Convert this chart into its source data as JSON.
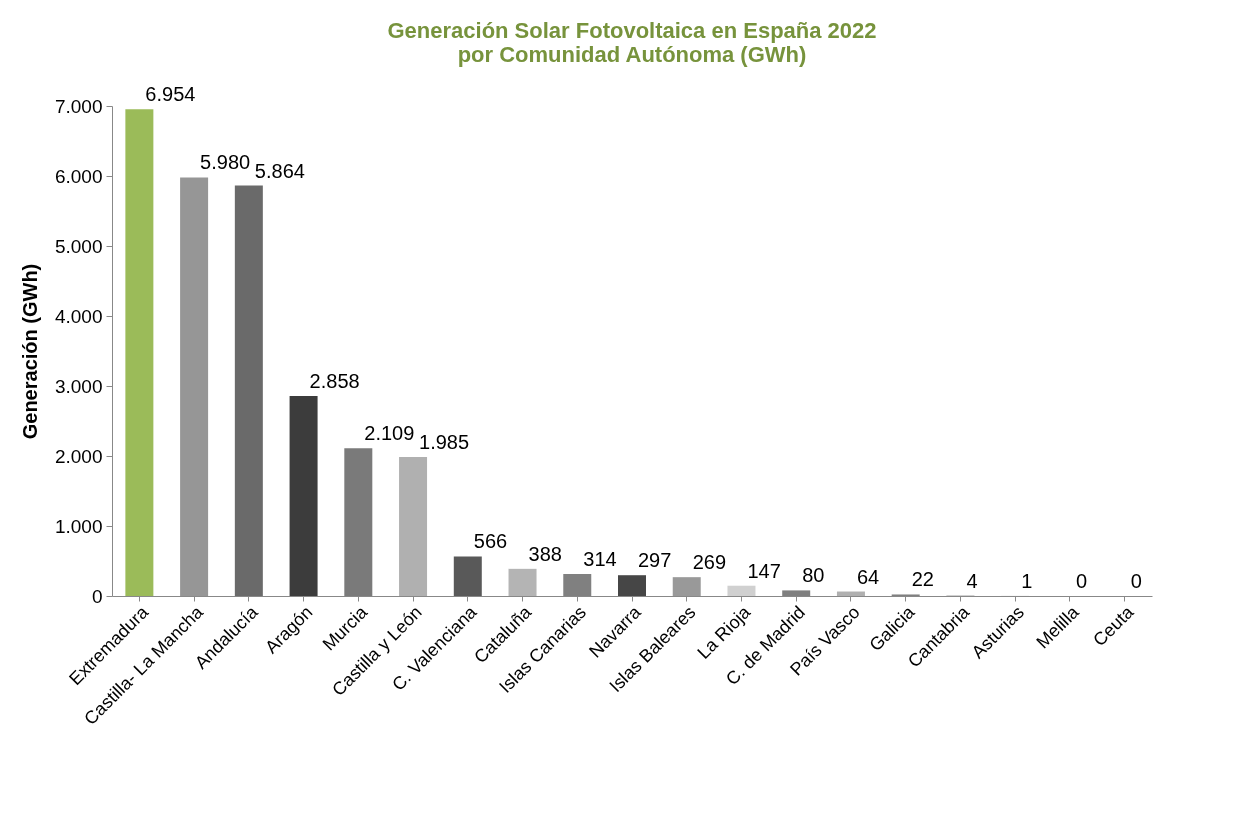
{
  "chart_data": {
    "type": "bar",
    "title": "Generación Solar Fotovoltaica en España 2022 por Comunidad Autónoma (GWh)",
    "ylabel": "Generación (GWh)",
    "categories": [
      "Extremadura",
      "Castilla- La Mancha",
      "Andalucía",
      "Aragón",
      "Murcia",
      "Castilla y León",
      "C. Valenciana",
      "Cataluña",
      "Islas Canarias",
      "Navarra",
      "Islas Baleares",
      "La Rioja",
      "C. de Madrid",
      "País Vasco",
      "Galicia",
      "Cantabria",
      "Asturias",
      "Melilla",
      "Ceuta"
    ],
    "values": [
      6954,
      5980,
      5864,
      2858,
      2109,
      1985,
      566,
      388,
      314,
      297,
      269,
      147,
      80,
      64,
      22,
      4,
      1,
      0,
      0
    ],
    "value_labels": [
      "6.954",
      "5.980",
      "5.864",
      "2.858",
      "2.109",
      "1.985",
      "566",
      "388",
      "314",
      "297",
      "269",
      "147",
      "80",
      "64",
      "22",
      "4",
      "1",
      "0",
      "0"
    ],
    "colors": [
      "#9bbb59",
      "#969696",
      "#6a6a6a",
      "#3c3c3c",
      "#7a7a7a",
      "#b0b0b0",
      "#595959",
      "#b4b4b4",
      "#808080",
      "#464646",
      "#999999",
      "#d0d0d0",
      "#7f7f7f",
      "#b0b0b0",
      "#808080",
      "#595959",
      "#9a9a9a",
      "#c0c0c0",
      "#808080"
    ],
    "ylim": [
      0,
      7000
    ],
    "yticks": [
      {
        "value": 0,
        "label": "0"
      },
      {
        "value": 1000,
        "label": "1.000"
      },
      {
        "value": 2000,
        "label": "2.000"
      },
      {
        "value": 3000,
        "label": "3.000"
      },
      {
        "value": 4000,
        "label": "4.000"
      },
      {
        "value": 5000,
        "label": "5.000"
      },
      {
        "value": 6000,
        "label": "6.000"
      },
      {
        "value": 7000,
        "label": "7.000"
      }
    ],
    "grid": false
  }
}
